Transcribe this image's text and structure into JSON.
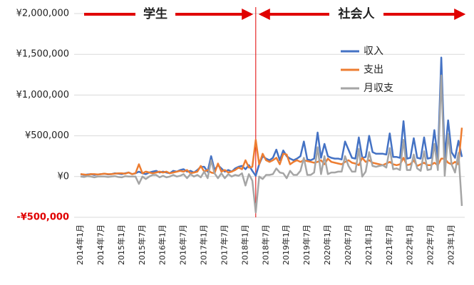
{
  "chart_data": {
    "type": "line",
    "annotations": [
      "学生",
      "社会人"
    ],
    "categories": [
      "2014年1月",
      null,
      null,
      null,
      null,
      null,
      "2014年7月",
      null,
      null,
      null,
      null,
      null,
      "2015年1月",
      null,
      null,
      null,
      null,
      null,
      "2015年7月",
      null,
      null,
      null,
      null,
      null,
      "2016年1月",
      null,
      null,
      null,
      null,
      null,
      "2016年7月",
      null,
      null,
      null,
      null,
      null,
      "2017年1月",
      null,
      null,
      null,
      null,
      null,
      "2017年7月",
      null,
      null,
      null,
      null,
      null,
      "2018年1月",
      null,
      null,
      null,
      null,
      null,
      "2018年7月",
      null,
      null,
      null,
      null,
      null,
      "2019年1月",
      null,
      null,
      null,
      null,
      null,
      "2019年7月",
      null,
      null,
      null,
      null,
      null,
      "2020年1月",
      null,
      null,
      null,
      null,
      null,
      "2020年7月",
      null,
      null,
      null,
      null,
      null,
      "2021年1月",
      null,
      null,
      null,
      null,
      null,
      "2021年7月",
      null,
      null,
      null,
      null,
      null,
      "2022年1月",
      null,
      null,
      null,
      null,
      null,
      "2022年7月",
      null,
      null,
      null,
      null,
      null,
      "2023年1月",
      null,
      null,
      null
    ],
    "series": [
      {
        "name": "収入",
        "color": "#4472c4",
        "values": [
          30000,
          20000,
          25000,
          30000,
          20000,
          25000,
          30000,
          35000,
          25000,
          30000,
          40000,
          35000,
          30000,
          40000,
          50000,
          30000,
          40000,
          60000,
          40000,
          30000,
          50000,
          60000,
          70000,
          50000,
          60000,
          50000,
          40000,
          70000,
          60000,
          80000,
          90000,
          60000,
          70000,
          50000,
          80000,
          120000,
          120000,
          60000,
          250000,
          80000,
          140000,
          100000,
          60000,
          80000,
          60000,
          100000,
          120000,
          130000,
          90000,
          140000,
          70000,
          10000,
          150000,
          250000,
          220000,
          200000,
          230000,
          330000,
          200000,
          320000,
          250000,
          220000,
          200000,
          220000,
          250000,
          430000,
          210000,
          200000,
          220000,
          540000,
          230000,
          400000,
          250000,
          230000,
          220000,
          220000,
          210000,
          430000,
          330000,
          230000,
          220000,
          480000,
          230000,
          240000,
          500000,
          300000,
          280000,
          280000,
          280000,
          270000,
          530000,
          240000,
          240000,
          230000,
          680000,
          220000,
          230000,
          470000,
          230000,
          220000,
          480000,
          220000,
          230000,
          570000,
          220000,
          1460000,
          230000,
          690000,
          300000,
          230000,
          440000,
          240000
        ]
      },
      {
        "name": "支出",
        "color": "#ed7d31",
        "values": [
          30000,
          25000,
          20000,
          30000,
          30000,
          25000,
          30000,
          35000,
          30000,
          30000,
          35000,
          40000,
          40000,
          35000,
          50000,
          30000,
          40000,
          150000,
          40000,
          60000,
          50000,
          40000,
          50000,
          60000,
          50000,
          60000,
          40000,
          50000,
          60000,
          70000,
          60000,
          80000,
          40000,
          50000,
          60000,
          130000,
          60000,
          80000,
          50000,
          40000,
          160000,
          60000,
          80000,
          50000,
          60000,
          80000,
          110000,
          90000,
          200000,
          110000,
          120000,
          450000,
          150000,
          280000,
          200000,
          180000,
          200000,
          230000,
          150000,
          280000,
          270000,
          150000,
          180000,
          200000,
          180000,
          200000,
          190000,
          180000,
          170000,
          180000,
          200000,
          150000,
          220000,
          180000,
          170000,
          160000,
          150000,
          180000,
          200000,
          170000,
          160000,
          140000,
          230000,
          180000,
          200000,
          170000,
          160000,
          150000,
          140000,
          160000,
          180000,
          150000,
          140000,
          150000,
          230000,
          140000,
          150000,
          200000,
          130000,
          150000,
          170000,
          140000,
          140000,
          170000,
          140000,
          220000,
          220000,
          170000,
          150000,
          180000,
          150000,
          600000
        ]
      },
      {
        "name": "月収支",
        "color": "#a5a5a5",
        "values": [
          0,
          -5000,
          5000,
          0,
          -10000,
          0,
          0,
          0,
          -5000,
          0,
          5000,
          -5000,
          -10000,
          5000,
          0,
          0,
          0,
          -90000,
          0,
          -30000,
          0,
          20000,
          20000,
          -10000,
          10000,
          -10000,
          0,
          20000,
          0,
          10000,
          30000,
          -20000,
          30000,
          0,
          20000,
          -10000,
          60000,
          -20000,
          200000,
          40000,
          -20000,
          40000,
          -20000,
          30000,
          0,
          20000,
          10000,
          40000,
          -110000,
          30000,
          -50000,
          -440000,
          0,
          -30000,
          20000,
          20000,
          30000,
          100000,
          50000,
          40000,
          -20000,
          70000,
          20000,
          20000,
          70000,
          230000,
          20000,
          20000,
          50000,
          360000,
          30000,
          250000,
          30000,
          50000,
          50000,
          60000,
          60000,
          250000,
          130000,
          60000,
          60000,
          340000,
          0,
          60000,
          300000,
          130000,
          120000,
          130000,
          140000,
          110000,
          350000,
          90000,
          100000,
          80000,
          450000,
          80000,
          80000,
          270000,
          100000,
          70000,
          310000,
          80000,
          90000,
          400000,
          80000,
          1240000,
          10000,
          520000,
          150000,
          50000,
          290000,
          -360000
        ]
      }
    ],
    "ylim": [
      -500000,
      2000000
    ],
    "yticks": [
      {
        "value": -500000,
        "label": "-¥500,000"
      },
      {
        "value": 0,
        "label": "¥0"
      },
      {
        "value": 500000,
        "label": "¥500,000"
      },
      {
        "value": 1000000,
        "label": "¥1,000,000"
      },
      {
        "value": 1500000,
        "label": "¥1,500,000"
      },
      {
        "value": 2000000,
        "label": "¥2,000,000"
      }
    ],
    "grid": true
  }
}
